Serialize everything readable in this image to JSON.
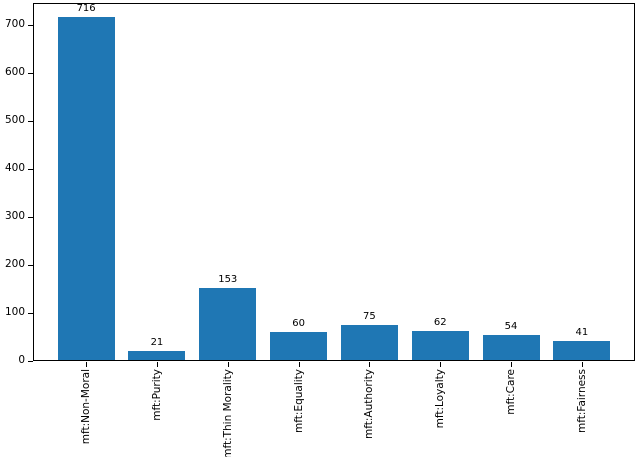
{
  "figure": {
    "background": "#ffffff"
  },
  "chart_data": {
    "type": "bar",
    "title": "",
    "xlabel": "",
    "ylabel": "",
    "categories": [
      "mft:Non-Moral",
      "mft:Purity",
      "mft:Thin Morality",
      "mft:Equality",
      "mft:Authority",
      "mft:Loyalty",
      "mft:Care",
      "mft:Fairness"
    ],
    "values": [
      716,
      21,
      153,
      60,
      75,
      62,
      54,
      41
    ],
    "bar_labels": [
      "716",
      "21",
      "153",
      "60",
      "75",
      "62",
      "54",
      "41"
    ],
    "yticks": [
      0,
      100,
      200,
      300,
      400,
      500,
      600,
      700
    ],
    "ylim": [
      0,
      746
    ],
    "xtick_rotation": 90,
    "bar_color": "#1f77b4",
    "axis_color": "#000000",
    "text_color": "#000000",
    "grid": false,
    "legend": null
  }
}
